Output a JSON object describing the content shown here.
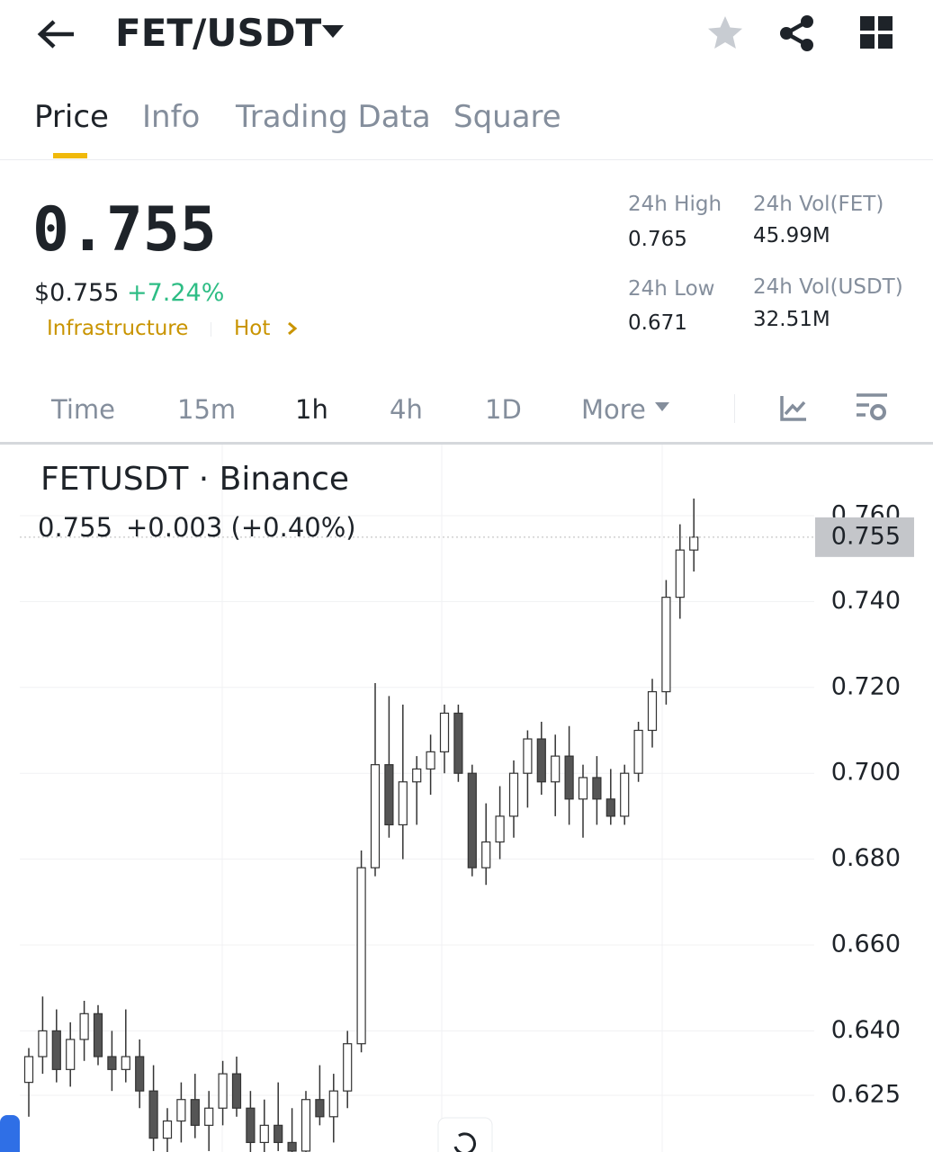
{
  "header": {
    "pair": "FET/USDT"
  },
  "tabs": [
    "Price",
    "Info",
    "Trading Data",
    "Square"
  ],
  "ticker": {
    "price": "0.755",
    "usd_price": "$0.755",
    "change": "+7.24%",
    "tags": [
      "Infrastructure",
      "Hot"
    ],
    "stats": [
      {
        "label": "24h High",
        "value": "0.765"
      },
      {
        "label": "24h Vol(FET)",
        "value": "45.99M"
      },
      {
        "label": "24h Low",
        "value": "0.671"
      },
      {
        "label": "24h Vol(USDT)",
        "value": "32.51M"
      }
    ]
  },
  "intervals": [
    "Time",
    "15m",
    "1h",
    "4h",
    "1D",
    "More"
  ],
  "chart_data": {
    "type": "candlestick",
    "title": "FETUSDT · Binance",
    "last_value": "0.755",
    "last_change": "+0.003 (+0.40%)",
    "open": [
      0.628,
      0.634,
      0.64,
      0.631,
      0.638,
      0.644,
      0.634,
      0.631,
      0.634,
      0.626,
      0.615,
      0.619,
      0.624,
      0.618,
      0.622,
      0.63,
      0.622,
      0.614,
      0.618,
      0.614,
      0.612,
      0.624,
      0.62,
      0.626,
      0.637,
      0.678,
      0.702,
      0.688,
      0.698,
      0.701,
      0.705,
      0.714,
      0.7,
      0.678,
      0.684,
      0.69,
      0.7,
      0.708,
      0.698,
      0.704,
      0.694,
      0.699,
      0.694,
      0.69,
      0.7,
      0.71,
      0.719,
      0.741,
      0.752
    ],
    "high": [
      0.636,
      0.648,
      0.645,
      0.642,
      0.647,
      0.646,
      0.64,
      0.645,
      0.638,
      0.632,
      0.622,
      0.628,
      0.63,
      0.626,
      0.633,
      0.634,
      0.626,
      0.624,
      0.628,
      0.622,
      0.626,
      0.632,
      0.63,
      0.64,
      0.682,
      0.721,
      0.718,
      0.716,
      0.704,
      0.709,
      0.716,
      0.716,
      0.702,
      0.693,
      0.697,
      0.703,
      0.71,
      0.712,
      0.709,
      0.711,
      0.702,
      0.704,
      0.701,
      0.702,
      0.712,
      0.722,
      0.745,
      0.758,
      0.764
    ],
    "low": [
      0.62,
      0.63,
      0.628,
      0.627,
      0.633,
      0.632,
      0.626,
      0.628,
      0.622,
      0.612,
      0.61,
      0.614,
      0.615,
      0.612,
      0.618,
      0.62,
      0.61,
      0.61,
      0.612,
      0.608,
      0.61,
      0.618,
      0.614,
      0.622,
      0.635,
      0.676,
      0.685,
      0.68,
      0.688,
      0.695,
      0.7,
      0.698,
      0.676,
      0.674,
      0.68,
      0.685,
      0.692,
      0.695,
      0.69,
      0.688,
      0.685,
      0.688,
      0.688,
      0.688,
      0.698,
      0.706,
      0.716,
      0.736,
      0.747
    ],
    "close": [
      0.634,
      0.64,
      0.631,
      0.638,
      0.644,
      0.634,
      0.631,
      0.634,
      0.626,
      0.615,
      0.619,
      0.624,
      0.618,
      0.622,
      0.63,
      0.622,
      0.614,
      0.618,
      0.614,
      0.612,
      0.624,
      0.62,
      0.626,
      0.637,
      0.678,
      0.702,
      0.688,
      0.698,
      0.701,
      0.705,
      0.714,
      0.7,
      0.678,
      0.684,
      0.69,
      0.7,
      0.708,
      0.698,
      0.704,
      0.694,
      0.699,
      0.694,
      0.69,
      0.7,
      0.71,
      0.719,
      0.741,
      0.752,
      0.755
    ],
    "ylim": [
      0.61,
      0.77
    ],
    "yticks": [
      {
        "value": 0.76,
        "label": "0.760"
      },
      {
        "value": 0.74,
        "label": "0.740"
      },
      {
        "value": 0.72,
        "label": "0.720"
      },
      {
        "value": 0.7,
        "label": "0.700"
      },
      {
        "value": 0.68,
        "label": "0.680"
      },
      {
        "value": 0.66,
        "label": "0.660"
      },
      {
        "value": 0.64,
        "label": "0.640"
      },
      {
        "value": 0.625,
        "label": "0.625"
      }
    ],
    "last_price": {
      "value": 0.755,
      "label": "0.755"
    },
    "grid": true,
    "up_color": "#ffffff",
    "down_color": "#555555"
  }
}
